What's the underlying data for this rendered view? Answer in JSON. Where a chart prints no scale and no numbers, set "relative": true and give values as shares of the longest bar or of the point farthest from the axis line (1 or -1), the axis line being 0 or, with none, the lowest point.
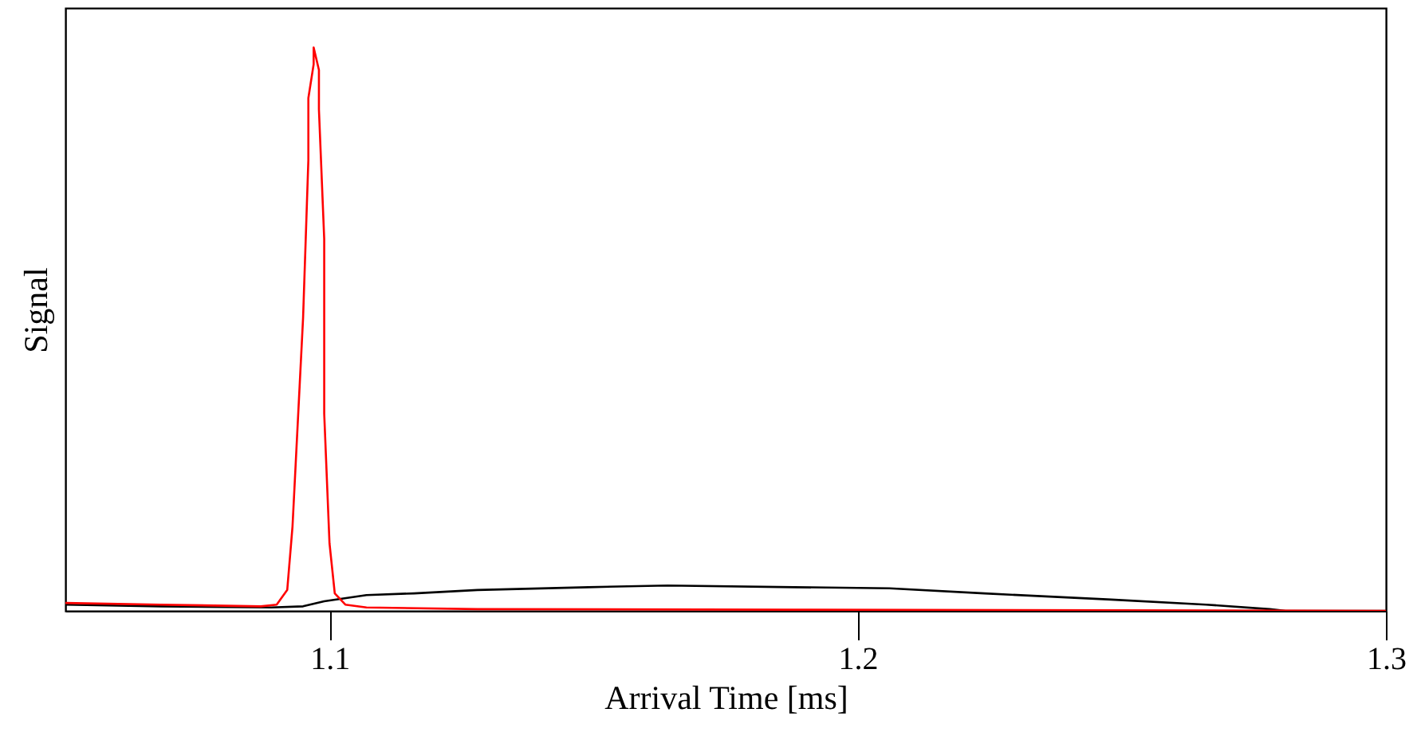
{
  "chart_data": {
    "type": "line",
    "xlabel": "Arrival Time [ms]",
    "ylabel": "Signal",
    "relative": true,
    "xlim": [
      1.05,
      1.3
    ],
    "xticks": [
      1.1,
      1.2,
      1.3
    ],
    "line_style": "solid",
    "series": [
      {
        "color": "#000000",
        "x": [
          1.05,
          1.068,
          1.089,
          1.095,
          1.099,
          1.107,
          1.116,
          1.128,
          1.149,
          1.164,
          1.188,
          1.206,
          1.224,
          1.248,
          1.266,
          1.278,
          1.281,
          1.3
        ],
        "values": [
          0.011,
          0.008,
          0.006,
          0.008,
          0.017,
          0.028,
          0.031,
          0.037,
          0.042,
          0.045,
          0.042,
          0.04,
          0.031,
          0.02,
          0.011,
          0.003,
          0,
          0
        ]
      },
      {
        "color": "#ff0000",
        "x": [
          1.05,
          1.068,
          1.087,
          1.09,
          1.092,
          1.093,
          1.095,
          1.096,
          1.096,
          1.097,
          1.097,
          1.098,
          1.098,
          1.099,
          1.099,
          1.1,
          1.101,
          1.103,
          1.107,
          1.128,
          1.188,
          1.3
        ],
        "values": [
          0.014,
          0.011,
          0.008,
          0.011,
          0.037,
          0.15,
          0.52,
          0.8,
          0.91,
          0.97,
          1,
          0.96,
          0.89,
          0.66,
          0.35,
          0.12,
          0.031,
          0.011,
          0.006,
          0.003,
          0.002,
          0
        ]
      }
    ]
  }
}
